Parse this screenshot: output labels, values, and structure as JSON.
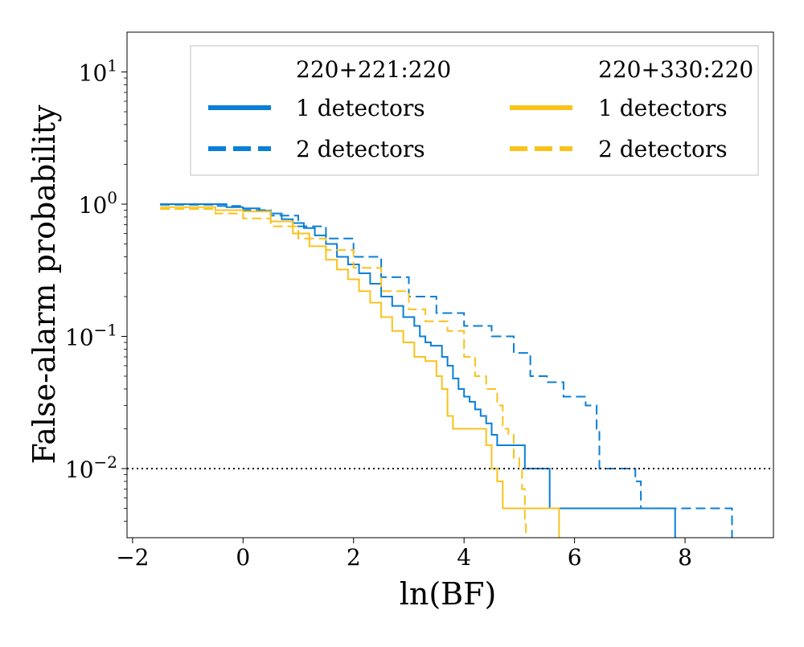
{
  "chart_data": {
    "type": "line",
    "title": "",
    "xlabel": "ln(BF)",
    "ylabel": "False-alarm probability",
    "xlim": [
      -2.1,
      9.6
    ],
    "ylim": [
      0.003,
      20
    ],
    "y_scale": "log",
    "grid": false,
    "x_ticks": [
      -2,
      0,
      2,
      4,
      6,
      8
    ],
    "x_tick_labels": [
      "−2",
      "0",
      "2",
      "4",
      "6",
      "8"
    ],
    "y_ticks": [
      0.01,
      0.1,
      1,
      10
    ],
    "y_tick_labels": [
      {
        "base": "10",
        "exp": "−2"
      },
      {
        "base": "10",
        "exp": "−1"
      },
      {
        "base": "10",
        "exp": "0"
      },
      {
        "base": "10",
        "exp": "1"
      }
    ],
    "threshold": {
      "y": 0.01,
      "style": "dotted",
      "color": "#000000"
    },
    "legend": {
      "position": "top-right",
      "groups": [
        {
          "title": "220+221:220",
          "entries": [
            "1 detectors",
            "2 detectors"
          ]
        },
        {
          "title": "220+330:220",
          "entries": [
            "1 detectors",
            "2 detectors"
          ]
        }
      ]
    },
    "colors": {
      "blue": "#0a7fd8",
      "yellow": "#fbc21c"
    },
    "series": [
      {
        "name": "220+221:220 — 1 detectors",
        "color": "#0a7fd8",
        "dash": "solid",
        "x": [
          -1.5,
          -0.6,
          -0.3,
          0.0,
          0.3,
          0.5,
          0.7,
          0.9,
          1.1,
          1.3,
          1.5,
          1.7,
          1.9,
          2.1,
          2.3,
          2.5,
          2.7,
          2.9,
          3.1,
          3.2,
          3.3,
          3.4,
          3.6,
          3.7,
          3.8,
          3.9,
          4.0,
          4.1,
          4.2,
          4.3,
          4.4,
          4.5,
          4.6,
          4.9,
          5.1,
          5.5,
          5.55,
          7.8,
          7.82
        ],
        "y": [
          1.0,
          1.0,
          0.95,
          0.93,
          0.89,
          0.85,
          0.77,
          0.72,
          0.66,
          0.58,
          0.5,
          0.4,
          0.35,
          0.3,
          0.25,
          0.2,
          0.17,
          0.14,
          0.12,
          0.1,
          0.09,
          0.085,
          0.07,
          0.06,
          0.048,
          0.04,
          0.035,
          0.032,
          0.028,
          0.025,
          0.022,
          0.018,
          0.015,
          0.015,
          0.01,
          0.01,
          0.005,
          0.005,
          0.001
        ]
      },
      {
        "name": "220+221:220 — 2 detectors",
        "color": "#0a7fd8",
        "dash": "dashed",
        "x": [
          -1.5,
          -0.5,
          0.0,
          0.5,
          1.0,
          1.5,
          2.0,
          2.5,
          3.0,
          3.5,
          4.0,
          4.5,
          4.9,
          5.2,
          5.5,
          5.8,
          6.0,
          6.2,
          6.4,
          6.45,
          7.0,
          7.1,
          7.2,
          8.8,
          8.85
        ],
        "y": [
          0.99,
          0.97,
          0.9,
          0.82,
          0.68,
          0.55,
          0.4,
          0.28,
          0.2,
          0.15,
          0.12,
          0.1,
          0.075,
          0.05,
          0.045,
          0.035,
          0.035,
          0.03,
          0.02,
          0.01,
          0.01,
          0.008,
          0.005,
          0.005,
          0.001
        ]
      },
      {
        "name": "220+330:220 — 1 detectors",
        "color": "#fbc21c",
        "dash": "solid",
        "x": [
          -1.5,
          -0.5,
          0.0,
          0.5,
          0.9,
          1.2,
          1.5,
          1.7,
          1.9,
          2.1,
          2.3,
          2.5,
          2.7,
          2.9,
          3.1,
          3.3,
          3.5,
          3.6,
          3.7,
          3.8,
          4.0,
          4.4,
          4.5,
          4.6,
          4.7,
          5.0,
          5.7,
          5.72
        ],
        "y": [
          0.95,
          0.9,
          0.88,
          0.74,
          0.6,
          0.48,
          0.38,
          0.32,
          0.27,
          0.22,
          0.18,
          0.14,
          0.11,
          0.09,
          0.07,
          0.065,
          0.05,
          0.04,
          0.025,
          0.02,
          0.02,
          0.015,
          0.01,
          0.008,
          0.005,
          0.005,
          0.005,
          0.001
        ]
      },
      {
        "name": "220+330:220 — 2 detectors",
        "color": "#fbc21c",
        "dash": "dashed",
        "x": [
          -1.5,
          -0.5,
          0.0,
          0.5,
          1.0,
          1.5,
          2.0,
          2.5,
          3.0,
          3.3,
          3.7,
          4.0,
          4.2,
          4.4,
          4.6,
          4.7,
          4.8,
          4.9,
          5.0,
          5.05,
          5.1,
          5.12
        ],
        "y": [
          0.92,
          0.85,
          0.78,
          0.68,
          0.55,
          0.45,
          0.33,
          0.22,
          0.16,
          0.13,
          0.11,
          0.07,
          0.05,
          0.04,
          0.03,
          0.02,
          0.018,
          0.012,
          0.01,
          0.007,
          0.004,
          0.001
        ]
      }
    ]
  }
}
